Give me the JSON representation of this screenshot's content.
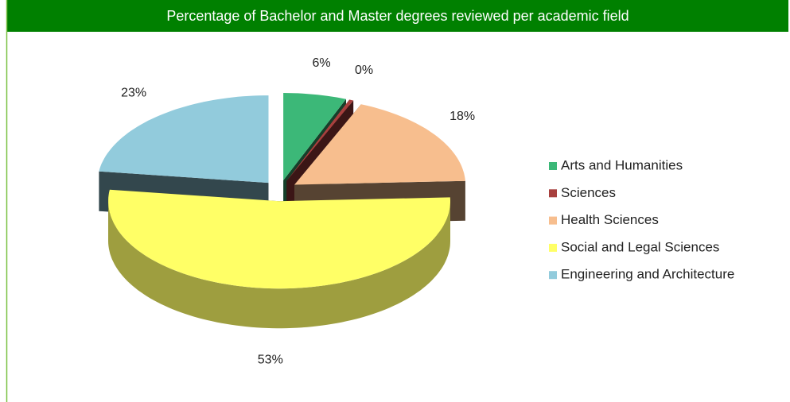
{
  "chart_data": {
    "type": "pie",
    "title": "Percentage of Bachelor and Master degrees reviewed per academic field",
    "categories": [
      "Arts and Humanities",
      "Sciences",
      "Health Sciences",
      "Social and Legal Sciences",
      "Engineering and Architecture"
    ],
    "values": [
      6,
      0.4,
      18,
      53,
      23
    ],
    "value_labels": [
      "6%",
      "0%",
      "18%",
      "53%",
      "23%"
    ],
    "colors": [
      "#3cb878",
      "#a8403e",
      "#f7be8e",
      "#ffff66",
      "#92cbdc"
    ],
    "legend": "right"
  }
}
